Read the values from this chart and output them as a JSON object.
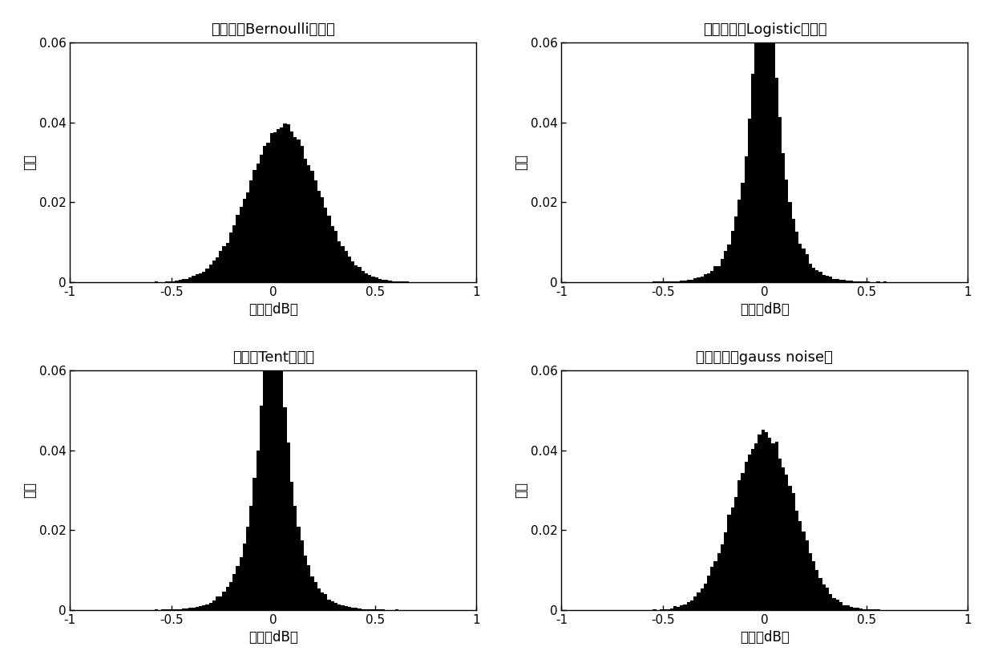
{
  "titles": [
    "伯努利（Bernoulli）映射",
    "逻辑斯蒂（Logistic）映射",
    "帐篹（Tent）映射",
    "高斯噪声（gauss noise）"
  ],
  "xlabel": "振幅（dB）",
  "ylabel": "概率",
  "xlim": [
    -1,
    1
  ],
  "ylim": [
    0,
    0.06
  ],
  "yticks": [
    0,
    0.02,
    0.04,
    0.06
  ],
  "xticks": [
    -1,
    -0.5,
    0,
    0.5,
    1
  ],
  "bar_color": "#000000",
  "bg_color": "#ffffff",
  "n_bins": 120,
  "n_samples": 100000,
  "random_seed": 42,
  "bernoulli_mean": 0.05,
  "bernoulli_std": 0.17,
  "logistic_scale": 0.07,
  "tent_scale": 0.075,
  "gauss_std": 0.15
}
